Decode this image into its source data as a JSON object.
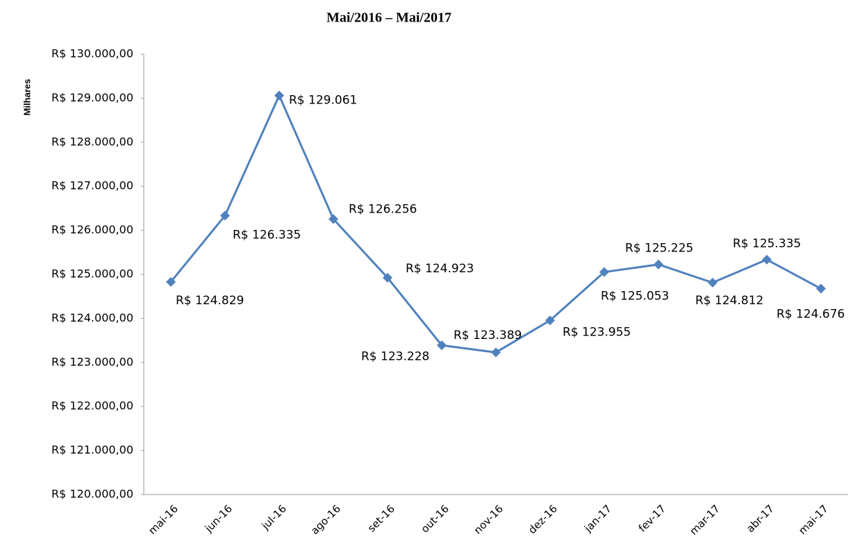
{
  "chart_data": {
    "type": "line",
    "title": "Mai/2016 – Mai/2017",
    "y_label": "Milhares",
    "categories": [
      "mai-16",
      "jun-16",
      "jul-16",
      "ago-16",
      "set-16",
      "out-16",
      "nov-16",
      "dez-16",
      "jan-17",
      "fev-17",
      "mar-17",
      "abr-17",
      "mai-17"
    ],
    "series": [
      {
        "name": "Valor",
        "color": "#4f81bd",
        "values": [
          124829,
          126335,
          129061,
          126256,
          124923,
          123389,
          123228,
          123955,
          125053,
          125225,
          124812,
          125335,
          124676
        ],
        "value_labels": [
          "R$ 124.829",
          "R$ 126.335",
          "R$ 129.061",
          "R$ 126.256",
          "R$ 124.923",
          "R$ 123.389",
          "R$ 123.228",
          "R$ 123.955",
          "R$ 125.053",
          "R$ 125.225",
          "R$ 124.812",
          "R$ 125.335",
          "R$ 124.676"
        ]
      }
    ],
    "ylim": [
      120000,
      130000
    ],
    "yticks": [
      {
        "value": 120000,
        "label": "R$ 120.000,00"
      },
      {
        "value": 121000,
        "label": "R$ 121.000,00"
      },
      {
        "value": 122000,
        "label": "R$ 122.000,00"
      },
      {
        "value": 123000,
        "label": "R$ 123.000,00"
      },
      {
        "value": 124000,
        "label": "R$ 124.000,00"
      },
      {
        "value": 125000,
        "label": "R$ 125.000,00"
      },
      {
        "value": 126000,
        "label": "R$ 126.000,00"
      },
      {
        "value": 127000,
        "label": "R$ 127.000,00"
      },
      {
        "value": 128000,
        "label": "R$ 128.000,00"
      },
      {
        "value": 129000,
        "label": "R$ 129.000,00"
      },
      {
        "value": 130000,
        "label": "R$ 130.000,00"
      }
    ],
    "grid": false
  }
}
